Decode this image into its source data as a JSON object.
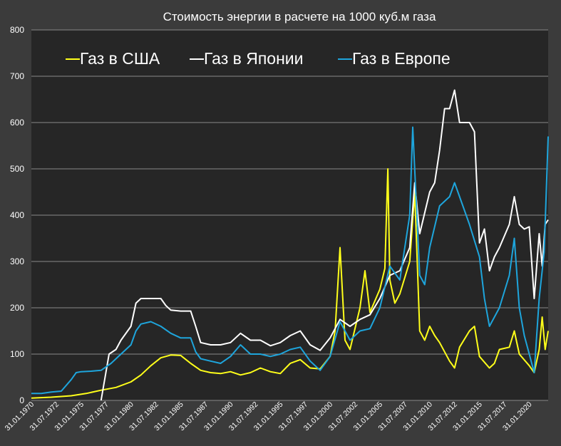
{
  "chart_data": {
    "type": "line",
    "title": "Стоимость энергии в расчете на 1000 куб.м газа",
    "xlabel": "",
    "ylabel": "",
    "ylim": [
      0,
      800
    ],
    "yticks": [
      0,
      100,
      200,
      300,
      400,
      500,
      600,
      700,
      800
    ],
    "grid": true,
    "legend_position": "top-left",
    "x_range_years": [
      1970.0,
      2021.9
    ],
    "xtick_labels": [
      "31.01.1970",
      "31.07.1972",
      "31.01.1975",
      "31.07.1977",
      "31.01.1980",
      "31.07.1982",
      "31.01.1985",
      "31.07.1987",
      "31.01.1990",
      "31.07.1992",
      "31.01.1995",
      "31.07.1997",
      "31.01.2000",
      "31.07.2002",
      "31.01.2005",
      "31.07.2007",
      "31.01.2010",
      "31.07.2012",
      "31.01.2015",
      "31.07.2017",
      "31.01.2020"
    ],
    "xtick_years": [
      1970.08,
      1972.58,
      1975.08,
      1977.58,
      1980.08,
      1982.58,
      1985.08,
      1987.58,
      1990.08,
      1992.58,
      1995.08,
      1997.58,
      2000.08,
      2002.58,
      2005.08,
      2007.58,
      2010.08,
      2012.58,
      2015.08,
      2017.58,
      2020.08
    ],
    "series": [
      {
        "name": "Газ в США",
        "color": "#ffff1a",
        "points": [
          [
            1970,
            5
          ],
          [
            1972,
            7
          ],
          [
            1974,
            10
          ],
          [
            1975.5,
            15
          ],
          [
            1977,
            22
          ],
          [
            1978.5,
            28
          ],
          [
            1980,
            40
          ],
          [
            1981,
            55
          ],
          [
            1982,
            75
          ],
          [
            1983,
            92
          ],
          [
            1984,
            98
          ],
          [
            1985,
            97
          ],
          [
            1986,
            80
          ],
          [
            1987,
            65
          ],
          [
            1988,
            60
          ],
          [
            1989,
            58
          ],
          [
            1990,
            62
          ],
          [
            1991,
            55
          ],
          [
            1992,
            60
          ],
          [
            1993,
            70
          ],
          [
            1994,
            62
          ],
          [
            1995,
            58
          ],
          [
            1996,
            80
          ],
          [
            1997,
            88
          ],
          [
            1998,
            70
          ],
          [
            1999,
            68
          ],
          [
            2000,
            95
          ],
          [
            2000.5,
            150
          ],
          [
            2001,
            330
          ],
          [
            2001.5,
            130
          ],
          [
            2002,
            110
          ],
          [
            2003,
            200
          ],
          [
            2003.5,
            280
          ],
          [
            2004,
            190
          ],
          [
            2005,
            240
          ],
          [
            2005.5,
            285
          ],
          [
            2005.8,
            500
          ],
          [
            2006,
            260
          ],
          [
            2006.5,
            210
          ],
          [
            2007,
            230
          ],
          [
            2008,
            300
          ],
          [
            2008.5,
            450
          ],
          [
            2009,
            150
          ],
          [
            2009.5,
            130
          ],
          [
            2010,
            160
          ],
          [
            2010.5,
            140
          ],
          [
            2011,
            125
          ],
          [
            2012,
            85
          ],
          [
            2012.5,
            70
          ],
          [
            2013,
            115
          ],
          [
            2014,
            150
          ],
          [
            2014.5,
            160
          ],
          [
            2015,
            95
          ],
          [
            2016,
            70
          ],
          [
            2016.5,
            80
          ],
          [
            2017,
            110
          ],
          [
            2018,
            115
          ],
          [
            2018.5,
            150
          ],
          [
            2019,
            100
          ],
          [
            2020,
            75
          ],
          [
            2020.5,
            60
          ],
          [
            2021,
            110
          ],
          [
            2021.3,
            180
          ],
          [
            2021.6,
            110
          ],
          [
            2021.9,
            150
          ]
        ]
      },
      {
        "name": "Газ в Японии",
        "color": "#ffffff",
        "points": [
          [
            1977,
            0
          ],
          [
            1977.8,
            100
          ],
          [
            1978.5,
            110
          ],
          [
            1979,
            130
          ],
          [
            1980,
            160
          ],
          [
            1980.5,
            210
          ],
          [
            1981,
            220
          ],
          [
            1982,
            220
          ],
          [
            1983,
            220
          ],
          [
            1983.5,
            205
          ],
          [
            1984,
            195
          ],
          [
            1985,
            193
          ],
          [
            1986,
            193
          ],
          [
            1986.5,
            160
          ],
          [
            1987,
            125
          ],
          [
            1988,
            120
          ],
          [
            1989,
            120
          ],
          [
            1990,
            125
          ],
          [
            1991,
            145
          ],
          [
            1992,
            130
          ],
          [
            1993,
            130
          ],
          [
            1994,
            118
          ],
          [
            1995,
            125
          ],
          [
            1996,
            140
          ],
          [
            1997,
            150
          ],
          [
            1998,
            120
          ],
          [
            1999,
            108
          ],
          [
            2000,
            135
          ],
          [
            2001,
            175
          ],
          [
            2002,
            160
          ],
          [
            2003,
            175
          ],
          [
            2004,
            185
          ],
          [
            2005,
            220
          ],
          [
            2006,
            270
          ],
          [
            2007,
            280
          ],
          [
            2008,
            330
          ],
          [
            2008.5,
            470
          ],
          [
            2009,
            360
          ],
          [
            2010,
            450
          ],
          [
            2010.5,
            470
          ],
          [
            2011,
            540
          ],
          [
            2011.5,
            630
          ],
          [
            2012,
            630
          ],
          [
            2012.5,
            670
          ],
          [
            2013,
            600
          ],
          [
            2014,
            600
          ],
          [
            2014.5,
            580
          ],
          [
            2015,
            340
          ],
          [
            2015.5,
            370
          ],
          [
            2016,
            280
          ],
          [
            2016.5,
            310
          ],
          [
            2017,
            330
          ],
          [
            2018,
            380
          ],
          [
            2018.5,
            440
          ],
          [
            2019,
            380
          ],
          [
            2019.5,
            370
          ],
          [
            2020,
            375
          ],
          [
            2020.5,
            220
          ],
          [
            2021,
            360
          ],
          [
            2021.3,
            290
          ],
          [
            2021.6,
            380
          ],
          [
            2021.9,
            390
          ]
        ]
      },
      {
        "name": "Газ в Европе",
        "color": "#1ea5dc",
        "points": [
          [
            1970,
            15
          ],
          [
            1971,
            15
          ],
          [
            1972,
            18
          ],
          [
            1973,
            20
          ],
          [
            1974,
            45
          ],
          [
            1974.5,
            60
          ],
          [
            1975,
            62
          ],
          [
            1976,
            63
          ],
          [
            1977,
            65
          ],
          [
            1978,
            80
          ],
          [
            1979,
            100
          ],
          [
            1980,
            120
          ],
          [
            1980.5,
            150
          ],
          [
            1981,
            165
          ],
          [
            1982,
            170
          ],
          [
            1983,
            160
          ],
          [
            1984,
            145
          ],
          [
            1985,
            135
          ],
          [
            1986,
            135
          ],
          [
            1986.5,
            105
          ],
          [
            1987,
            90
          ],
          [
            1988,
            85
          ],
          [
            1989,
            80
          ],
          [
            1990,
            95
          ],
          [
            1991,
            120
          ],
          [
            1992,
            100
          ],
          [
            1993,
            100
          ],
          [
            1994,
            95
          ],
          [
            1995,
            100
          ],
          [
            1996,
            110
          ],
          [
            1997,
            115
          ],
          [
            1998,
            85
          ],
          [
            1999,
            65
          ],
          [
            2000,
            95
          ],
          [
            2001,
            170
          ],
          [
            2002,
            130
          ],
          [
            2003,
            150
          ],
          [
            2004,
            155
          ],
          [
            2005,
            200
          ],
          [
            2006,
            290
          ],
          [
            2007,
            260
          ],
          [
            2008,
            400
          ],
          [
            2008.3,
            590
          ],
          [
            2009,
            270
          ],
          [
            2009.5,
            250
          ],
          [
            2010,
            330
          ],
          [
            2011,
            420
          ],
          [
            2012,
            440
          ],
          [
            2012.5,
            470
          ],
          [
            2013,
            440
          ],
          [
            2014,
            380
          ],
          [
            2015,
            310
          ],
          [
            2015.5,
            220
          ],
          [
            2016,
            160
          ],
          [
            2017,
            200
          ],
          [
            2018,
            270
          ],
          [
            2018.5,
            350
          ],
          [
            2019,
            200
          ],
          [
            2019.5,
            140
          ],
          [
            2020,
            100
          ],
          [
            2020.5,
            60
          ],
          [
            2021,
            220
          ],
          [
            2021.5,
            320
          ],
          [
            2021.9,
            570
          ]
        ]
      }
    ]
  }
}
